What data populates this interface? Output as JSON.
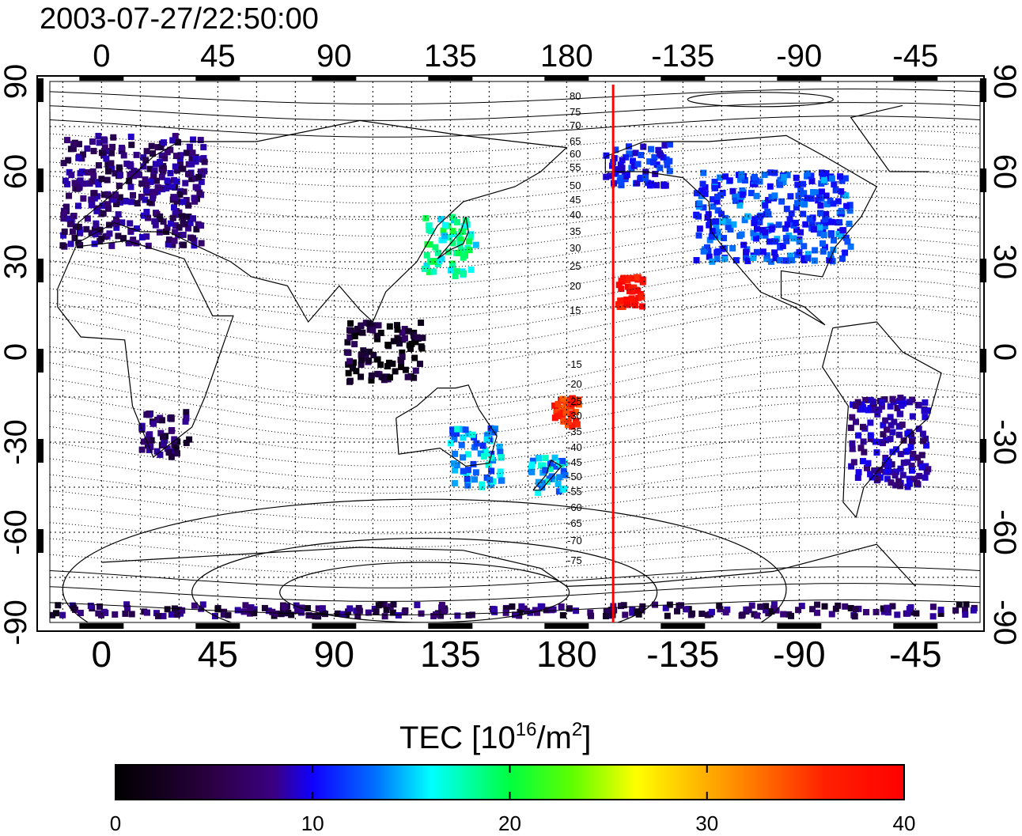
{
  "timestamp": "2003-07-27/22:50:00",
  "map": {
    "top_lon_ticks": [
      "0",
      "45",
      "90",
      "135",
      "180",
      "-135",
      "-90",
      "-45"
    ],
    "bottom_lon_ticks": [
      "0",
      "45",
      "90",
      "135",
      "180",
      "-135",
      "-90",
      "-45"
    ],
    "lat_ticks": [
      "90",
      "60",
      "30",
      "0",
      "-30",
      "-60",
      "-90"
    ],
    "contour_labels_north": [
      "80",
      "75",
      "70",
      "65",
      "60",
      "55",
      "50",
      "45",
      "40",
      "35",
      "30",
      "25",
      "20",
      "15"
    ],
    "contour_labels_south": [
      "-15",
      "-20",
      "-25",
      "-30",
      "-35",
      "-40",
      "-45",
      "-50",
      "-55",
      "-60",
      "-65",
      "-70",
      "-75"
    ],
    "terminator_lon": -162
  },
  "colorbar": {
    "label_main": "TEC  [10",
    "label_exp1": "16",
    "label_mid": "/m",
    "label_exp2": "2",
    "label_end": "]",
    "ticks": [
      "0",
      "10",
      "20",
      "30",
      "40"
    ],
    "range": [
      0,
      40
    ]
  },
  "colors": {
    "terminator": "#ff0000",
    "frame": "#000000",
    "grid": "#000000"
  },
  "tec_regions": [
    {
      "name": "europe",
      "lon0": -15,
      "lon1": 40,
      "lat0": 35,
      "lat1": 72,
      "tec": 5
    },
    {
      "name": "north-america",
      "lon0": -130,
      "lon1": -70,
      "lat0": 30,
      "lat1": 60,
      "tec": 12
    },
    {
      "name": "japan",
      "lon0": 125,
      "lon1": 145,
      "lat0": 25,
      "lat1": 45,
      "tec": 18
    },
    {
      "name": "hawaii",
      "lon0": -160,
      "lon1": -150,
      "lat0": 15,
      "lat1": 25,
      "tec": 38
    },
    {
      "name": "australia",
      "lon0": 135,
      "lon1": 155,
      "lat0": -45,
      "lat1": -25,
      "tec": 14
    },
    {
      "name": "new-zealand",
      "lon0": 165,
      "lon1": 180,
      "lat0": -48,
      "lat1": -35,
      "tec": 15
    },
    {
      "name": "fiji",
      "lon0": 175,
      "lon1": -175,
      "lat0": -25,
      "lat1": -15,
      "tec": 36
    },
    {
      "name": "south-america",
      "lon0": -70,
      "lon1": -40,
      "lat0": -45,
      "lat1": -15,
      "tec": 7
    },
    {
      "name": "south-africa",
      "lon0": 15,
      "lon1": 35,
      "lat0": -35,
      "lat1": -20,
      "tec": 4
    },
    {
      "name": "antarctica",
      "lon0": -180,
      "lon1": 180,
      "lat0": -88,
      "lat1": -84,
      "tec": 4
    },
    {
      "name": "alaska",
      "lon0": -165,
      "lon1": -140,
      "lat0": 55,
      "lat1": 70,
      "tec": 10
    },
    {
      "name": "se-asia",
      "lon0": 95,
      "lon1": 125,
      "lat0": -10,
      "lat1": 10,
      "tec": 2
    }
  ]
}
